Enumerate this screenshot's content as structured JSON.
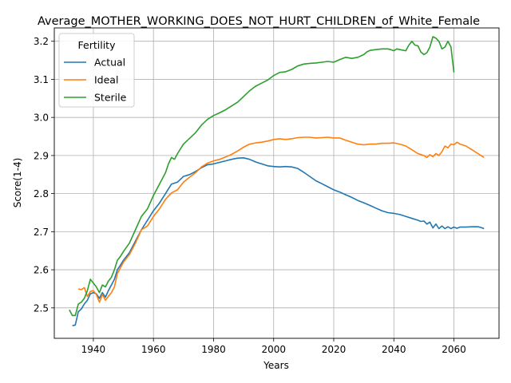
{
  "chart_data": {
    "type": "line",
    "title": "Average_MOTHER_WORKING_DOES_NOT_HURT_CHILDREN_of_White_Female",
    "xlabel": "Years",
    "ylabel": "Score(1-4)",
    "xlim": [
      1927,
      2075
    ],
    "ylim": [
      2.42,
      3.235
    ],
    "xticks": [
      1940,
      1960,
      1980,
      2000,
      2020,
      2040,
      2060
    ],
    "yticks": [
      2.5,
      2.6,
      2.7,
      2.8,
      2.9,
      3.0,
      3.1,
      3.2
    ],
    "grid": true,
    "legend": {
      "title": "Fertility",
      "position": "top-left"
    },
    "series": [
      {
        "name": "Actual",
        "color": "#1f77b4",
        "points": [
          [
            1933,
            2.453
          ],
          [
            1934,
            2.455
          ],
          [
            1935,
            2.49
          ],
          [
            1936,
            2.497
          ],
          [
            1937,
            2.51
          ],
          [
            1938,
            2.52
          ],
          [
            1939,
            2.537
          ],
          [
            1940,
            2.54
          ],
          [
            1941,
            2.537
          ],
          [
            1942,
            2.525
          ],
          [
            1943,
            2.54
          ],
          [
            1944,
            2.528
          ],
          [
            1945,
            2.545
          ],
          [
            1946,
            2.56
          ],
          [
            1947,
            2.575
          ],
          [
            1948,
            2.6
          ],
          [
            1949,
            2.612
          ],
          [
            1950,
            2.625
          ],
          [
            1952,
            2.645
          ],
          [
            1954,
            2.675
          ],
          [
            1956,
            2.705
          ],
          [
            1958,
            2.73
          ],
          [
            1960,
            2.755
          ],
          [
            1962,
            2.775
          ],
          [
            1964,
            2.8
          ],
          [
            1966,
            2.825
          ],
          [
            1968,
            2.83
          ],
          [
            1970,
            2.845
          ],
          [
            1972,
            2.85
          ],
          [
            1974,
            2.858
          ],
          [
            1976,
            2.868
          ],
          [
            1978,
            2.876
          ],
          [
            1980,
            2.878
          ],
          [
            1982,
            2.882
          ],
          [
            1984,
            2.886
          ],
          [
            1986,
            2.89
          ],
          [
            1988,
            2.893
          ],
          [
            1990,
            2.894
          ],
          [
            1992,
            2.89
          ],
          [
            1994,
            2.883
          ],
          [
            1996,
            2.878
          ],
          [
            1998,
            2.873
          ],
          [
            2000,
            2.871
          ],
          [
            2002,
            2.87
          ],
          [
            2004,
            2.871
          ],
          [
            2006,
            2.87
          ],
          [
            2008,
            2.866
          ],
          [
            2010,
            2.856
          ],
          [
            2012,
            2.845
          ],
          [
            2014,
            2.834
          ],
          [
            2016,
            2.826
          ],
          [
            2018,
            2.818
          ],
          [
            2020,
            2.81
          ],
          [
            2022,
            2.804
          ],
          [
            2024,
            2.797
          ],
          [
            2026,
            2.79
          ],
          [
            2028,
            2.782
          ],
          [
            2030,
            2.776
          ],
          [
            2032,
            2.769
          ],
          [
            2034,
            2.762
          ],
          [
            2036,
            2.755
          ],
          [
            2038,
            2.75
          ],
          [
            2040,
            2.748
          ],
          [
            2042,
            2.745
          ],
          [
            2044,
            2.74
          ],
          [
            2046,
            2.735
          ],
          [
            2048,
            2.73
          ],
          [
            2049,
            2.727
          ],
          [
            2050,
            2.728
          ],
          [
            2051,
            2.72
          ],
          [
            2052,
            2.725
          ],
          [
            2053,
            2.71
          ],
          [
            2054,
            2.72
          ],
          [
            2055,
            2.708
          ],
          [
            2056,
            2.715
          ],
          [
            2057,
            2.708
          ],
          [
            2058,
            2.713
          ],
          [
            2059,
            2.708
          ],
          [
            2060,
            2.712
          ],
          [
            2061,
            2.709
          ],
          [
            2062,
            2.712
          ],
          [
            2064,
            2.712
          ],
          [
            2066,
            2.713
          ],
          [
            2068,
            2.713
          ],
          [
            2069,
            2.711
          ],
          [
            2070,
            2.708
          ]
        ]
      },
      {
        "name": "Ideal",
        "color": "#ff7f0e",
        "points": [
          [
            1935,
            2.55
          ],
          [
            1936,
            2.548
          ],
          [
            1937,
            2.553
          ],
          [
            1938,
            2.53
          ],
          [
            1939,
            2.543
          ],
          [
            1940,
            2.545
          ],
          [
            1941,
            2.535
          ],
          [
            1942,
            2.515
          ],
          [
            1943,
            2.535
          ],
          [
            1944,
            2.52
          ],
          [
            1945,
            2.53
          ],
          [
            1946,
            2.54
          ],
          [
            1947,
            2.555
          ],
          [
            1948,
            2.59
          ],
          [
            1949,
            2.605
          ],
          [
            1950,
            2.62
          ],
          [
            1952,
            2.64
          ],
          [
            1954,
            2.67
          ],
          [
            1956,
            2.705
          ],
          [
            1958,
            2.715
          ],
          [
            1960,
            2.74
          ],
          [
            1962,
            2.76
          ],
          [
            1964,
            2.785
          ],
          [
            1966,
            2.802
          ],
          [
            1968,
            2.81
          ],
          [
            1970,
            2.83
          ],
          [
            1972,
            2.843
          ],
          [
            1974,
            2.855
          ],
          [
            1976,
            2.87
          ],
          [
            1978,
            2.88
          ],
          [
            1980,
            2.886
          ],
          [
            1982,
            2.89
          ],
          [
            1984,
            2.896
          ],
          [
            1986,
            2.903
          ],
          [
            1988,
            2.912
          ],
          [
            1990,
            2.922
          ],
          [
            1992,
            2.93
          ],
          [
            1994,
            2.933
          ],
          [
            1996,
            2.935
          ],
          [
            1998,
            2.938
          ],
          [
            2000,
            2.942
          ],
          [
            2002,
            2.944
          ],
          [
            2004,
            2.942
          ],
          [
            2006,
            2.944
          ],
          [
            2008,
            2.947
          ],
          [
            2010,
            2.948
          ],
          [
            2012,
            2.948
          ],
          [
            2014,
            2.946
          ],
          [
            2016,
            2.947
          ],
          [
            2018,
            2.948
          ],
          [
            2020,
            2.946
          ],
          [
            2022,
            2.946
          ],
          [
            2024,
            2.94
          ],
          [
            2026,
            2.935
          ],
          [
            2028,
            2.93
          ],
          [
            2030,
            2.928
          ],
          [
            2032,
            2.93
          ],
          [
            2034,
            2.93
          ],
          [
            2036,
            2.932
          ],
          [
            2038,
            2.932
          ],
          [
            2040,
            2.933
          ],
          [
            2042,
            2.93
          ],
          [
            2044,
            2.925
          ],
          [
            2046,
            2.915
          ],
          [
            2048,
            2.905
          ],
          [
            2050,
            2.9
          ],
          [
            2051,
            2.895
          ],
          [
            2052,
            2.902
          ],
          [
            2053,
            2.897
          ],
          [
            2054,
            2.905
          ],
          [
            2055,
            2.9
          ],
          [
            2056,
            2.91
          ],
          [
            2057,
            2.925
          ],
          [
            2058,
            2.92
          ],
          [
            2059,
            2.93
          ],
          [
            2060,
            2.928
          ],
          [
            2061,
            2.935
          ],
          [
            2062,
            2.93
          ],
          [
            2064,
            2.925
          ],
          [
            2066,
            2.915
          ],
          [
            2068,
            2.905
          ],
          [
            2069,
            2.9
          ],
          [
            2070,
            2.895
          ]
        ]
      },
      {
        "name": "Sterile",
        "color": "#2ca02c",
        "points": [
          [
            1932,
            2.495
          ],
          [
            1933,
            2.48
          ],
          [
            1934,
            2.48
          ],
          [
            1935,
            2.51
          ],
          [
            1936,
            2.515
          ],
          [
            1937,
            2.525
          ],
          [
            1938,
            2.545
          ],
          [
            1939,
            2.575
          ],
          [
            1940,
            2.565
          ],
          [
            1941,
            2.555
          ],
          [
            1942,
            2.54
          ],
          [
            1943,
            2.56
          ],
          [
            1944,
            2.555
          ],
          [
            1945,
            2.57
          ],
          [
            1946,
            2.58
          ],
          [
            1947,
            2.6
          ],
          [
            1948,
            2.625
          ],
          [
            1949,
            2.635
          ],
          [
            1950,
            2.648
          ],
          [
            1952,
            2.67
          ],
          [
            1954,
            2.705
          ],
          [
            1956,
            2.74
          ],
          [
            1958,
            2.76
          ],
          [
            1960,
            2.795
          ],
          [
            1962,
            2.825
          ],
          [
            1964,
            2.855
          ],
          [
            1965,
            2.878
          ],
          [
            1966,
            2.895
          ],
          [
            1967,
            2.89
          ],
          [
            1968,
            2.905
          ],
          [
            1970,
            2.93
          ],
          [
            1972,
            2.945
          ],
          [
            1974,
            2.96
          ],
          [
            1976,
            2.98
          ],
          [
            1978,
            2.995
          ],
          [
            1980,
            3.005
          ],
          [
            1982,
            3.012
          ],
          [
            1984,
            3.02
          ],
          [
            1986,
            3.03
          ],
          [
            1988,
            3.04
          ],
          [
            1990,
            3.055
          ],
          [
            1992,
            3.07
          ],
          [
            1994,
            3.082
          ],
          [
            1996,
            3.09
          ],
          [
            1998,
            3.098
          ],
          [
            2000,
            3.11
          ],
          [
            2002,
            3.118
          ],
          [
            2004,
            3.12
          ],
          [
            2006,
            3.126
          ],
          [
            2008,
            3.135
          ],
          [
            2010,
            3.14
          ],
          [
            2012,
            3.142
          ],
          [
            2014,
            3.143
          ],
          [
            2016,
            3.145
          ],
          [
            2018,
            3.147
          ],
          [
            2020,
            3.145
          ],
          [
            2022,
            3.152
          ],
          [
            2024,
            3.158
          ],
          [
            2026,
            3.155
          ],
          [
            2028,
            3.158
          ],
          [
            2030,
            3.165
          ],
          [
            2031,
            3.172
          ],
          [
            2032,
            3.176
          ],
          [
            2034,
            3.178
          ],
          [
            2036,
            3.18
          ],
          [
            2038,
            3.18
          ],
          [
            2039,
            3.178
          ],
          [
            2040,
            3.175
          ],
          [
            2041,
            3.18
          ],
          [
            2042,
            3.178
          ],
          [
            2044,
            3.175
          ],
          [
            2045,
            3.19
          ],
          [
            2046,
            3.2
          ],
          [
            2047,
            3.19
          ],
          [
            2048,
            3.188
          ],
          [
            2049,
            3.172
          ],
          [
            2050,
            3.165
          ],
          [
            2051,
            3.17
          ],
          [
            2052,
            3.185
          ],
          [
            2053,
            3.212
          ],
          [
            2054,
            3.208
          ],
          [
            2055,
            3.2
          ],
          [
            2056,
            3.18
          ],
          [
            2057,
            3.185
          ],
          [
            2058,
            3.2
          ],
          [
            2059,
            3.185
          ],
          [
            2060,
            3.118
          ]
        ]
      }
    ]
  }
}
